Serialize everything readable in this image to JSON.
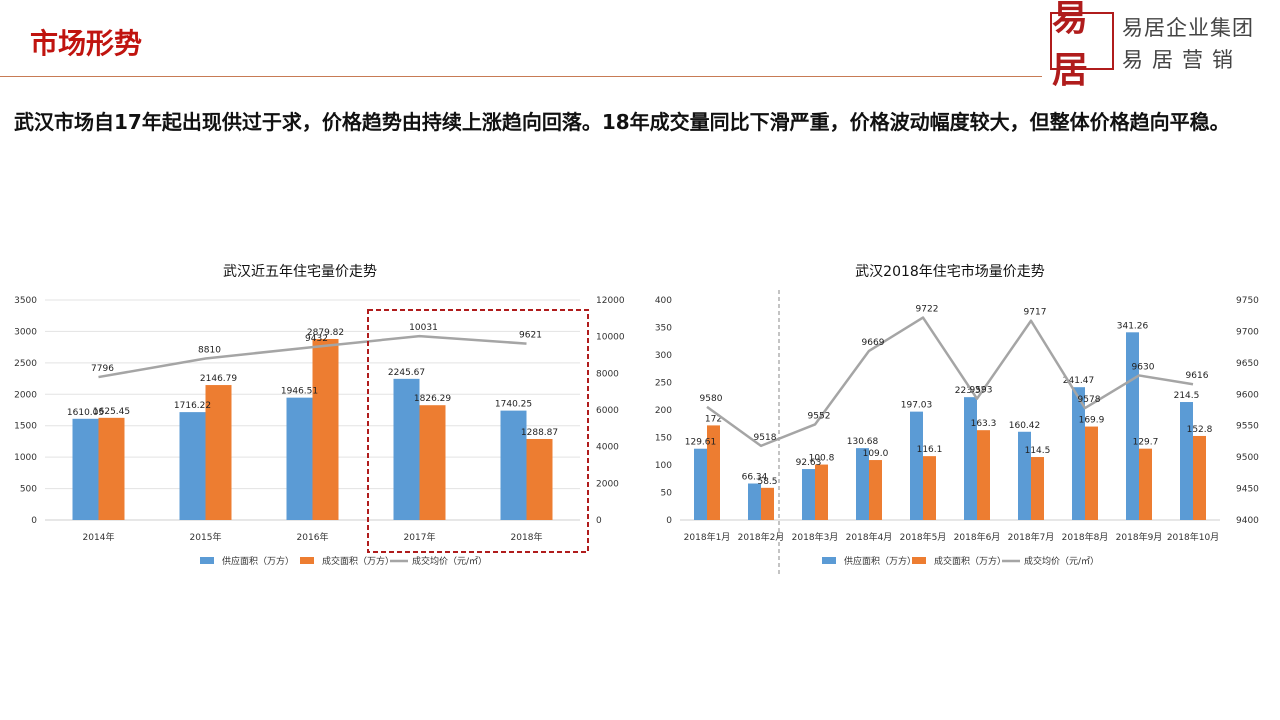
{
  "header": {
    "title": "市场形势",
    "logo_seal_text": "易居",
    "brand_line1": "易居企业集团",
    "brand_line2": "易居营销"
  },
  "intro_text": "武汉市场自17年起出现供过于求，价格趋势由持续上涨趋向回落。18年成交量同比下滑严重，价格波动幅度较大，但整体价格趋向平稳。",
  "colors": {
    "accent": "#c0140f",
    "supply": "#5b9bd5",
    "deal": "#ed7d31",
    "price": "#a5a5a5",
    "highlight_box": "#b01c1c",
    "divider": "#c77b55"
  },
  "chart_data": [
    {
      "type": "bar",
      "title": "武汉近五年住宅量价走势",
      "categories": [
        "2014年",
        "2015年",
        "2016年",
        "2017年",
        "2018年"
      ],
      "series": [
        {
          "name": "供应面积（万方）",
          "type": "bar",
          "axis": "left",
          "values": [
            1610.05,
            1716.22,
            1946.51,
            2245.67,
            1740.25
          ],
          "labels": [
            "1610.05",
            "1716.22",
            "1946.51",
            "2245.67",
            "1740.25"
          ]
        },
        {
          "name": "成交面积（万方）",
          "type": "bar",
          "axis": "left",
          "values": [
            1625.45,
            2146.79,
            2879.82,
            1826.29,
            1288.87
          ],
          "labels": [
            "1625.45",
            "2146.79",
            "2879.82",
            "1826.29",
            "1288.87"
          ]
        },
        {
          "name": "成交均价（元/㎡）",
          "type": "line",
          "axis": "right",
          "values": [
            7796,
            8810,
            9432,
            10031,
            9621
          ],
          "labels": [
            "7796",
            "8810",
            "9432",
            "10031",
            "9621"
          ]
        }
      ],
      "left_ticks": [
        "0",
        "500",
        "1000",
        "1500",
        "2000",
        "2500",
        "3000",
        "3500"
      ],
      "right_ticks": [
        "0",
        "2000",
        "4000",
        "6000",
        "8000",
        "10000",
        "12000"
      ],
      "ylim_left": [
        0,
        3500
      ],
      "ylim_right": [
        0,
        12000
      ],
      "grid": true,
      "legend_position": "bottom",
      "highlight": {
        "categories": [
          "2017年",
          "2018年"
        ],
        "style": "dashed-box"
      }
    },
    {
      "type": "bar",
      "title": "武汉2018年住宅市场量价走势",
      "categories": [
        "2018年1月",
        "2018年2月",
        "2018年3月",
        "2018年4月",
        "2018年5月",
        "2018年6月",
        "2018年7月",
        "2018年8月",
        "2018年9月",
        "2018年10月"
      ],
      "series": [
        {
          "name": "供应面积（万方）",
          "type": "bar",
          "axis": "left",
          "values": [
            129.61,
            66.34,
            92.63,
            130.68,
            197.03,
            223.37,
            160.42,
            241.47,
            341.26,
            214.5
          ],
          "labels": [
            "129.61",
            "66.34",
            "92.63",
            "130.68",
            "197.03",
            "223.37",
            "160.42",
            "241.47",
            "341.26",
            "214.5"
          ]
        },
        {
          "name": "成交面积（万方）",
          "type": "bar",
          "axis": "left",
          "values": [
            172,
            58.5,
            100.8,
            109.0,
            116.1,
            163.3,
            114.5,
            169.9,
            129.7,
            152.8
          ],
          "labels": [
            "172",
            "58.5",
            "100.8",
            "109.0",
            "116.1",
            "163.3",
            "114.5",
            "169.9",
            "129.7",
            "152.8"
          ]
        },
        {
          "name": "成交均价（元/㎡）",
          "type": "line",
          "axis": "right",
          "values": [
            9580,
            9518,
            9552,
            9669,
            9722,
            9593,
            9717,
            9578,
            9630,
            9616
          ],
          "labels": [
            "9580",
            "9518",
            "9552",
            "9669",
            "9722",
            "9593",
            "9717",
            "9578",
            "9630",
            "9616"
          ]
        }
      ],
      "left_ticks": [
        "0",
        "50",
        "100",
        "150",
        "200",
        "250",
        "300",
        "350",
        "400"
      ],
      "right_ticks": [
        "9400",
        "9450",
        "9500",
        "9550",
        "9600",
        "9650",
        "9700",
        "9750"
      ],
      "ylim_left": [
        0,
        400
      ],
      "ylim_right": [
        9400,
        9750
      ],
      "grid": false,
      "legend_position": "bottom"
    }
  ]
}
